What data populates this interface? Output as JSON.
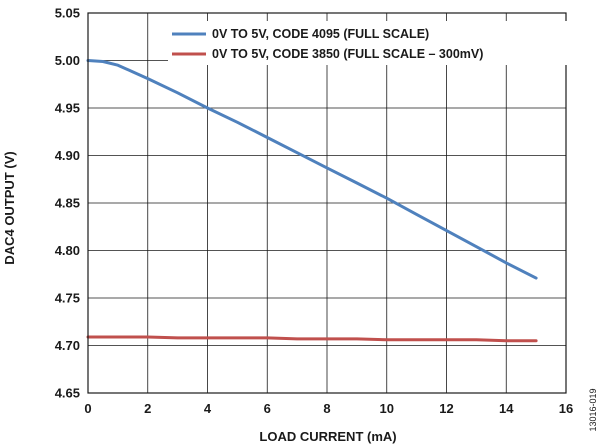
{
  "chart_data": {
    "type": "line",
    "title": "",
    "xlabel": "LOAD CURRENT (mA)",
    "ylabel": "DAC4 OUTPUT (V)",
    "xlim": [
      0,
      16
    ],
    "ylim": [
      4.65,
      5.05
    ],
    "x_ticks": [
      0,
      2,
      4,
      6,
      8,
      10,
      12,
      14,
      16
    ],
    "y_ticks": [
      4.65,
      4.7,
      4.75,
      4.8,
      4.85,
      4.9,
      4.95,
      5.0,
      5.05
    ],
    "x_tick_labels": [
      "0",
      "2",
      "4",
      "6",
      "8",
      "10",
      "12",
      "14",
      "16"
    ],
    "y_tick_labels": [
      "4.65",
      "4.70",
      "4.75",
      "4.80",
      "4.85",
      "4.90",
      "4.95",
      "5.00",
      "5.05"
    ],
    "grid": true,
    "legend_position": "top",
    "series": [
      {
        "name": "0V TO 5V, CODE 4095 (FULL SCALE)",
        "color": "#4f81bd",
        "x": [
          0,
          0.5,
          1,
          1.5,
          2,
          3,
          4,
          5,
          6,
          7,
          8,
          9,
          10,
          11,
          12,
          13,
          14,
          15
        ],
        "y": [
          5.0,
          4.999,
          4.995,
          4.988,
          4.981,
          4.966,
          4.95,
          4.935,
          4.919,
          4.903,
          4.887,
          4.871,
          4.855,
          4.838,
          4.821,
          4.804,
          4.787,
          4.771
        ]
      },
      {
        "name": "0V TO 5V, CODE 3850 (FULL SCALE – 300mV)",
        "color": "#c0504d",
        "x": [
          0,
          1,
          2,
          3,
          4,
          5,
          6,
          7,
          8,
          9,
          10,
          11,
          12,
          13,
          14,
          15
        ],
        "y": [
          4.709,
          4.709,
          4.709,
          4.708,
          4.708,
          4.708,
          4.708,
          4.707,
          4.707,
          4.707,
          4.706,
          4.706,
          4.706,
          4.706,
          4.705,
          4.705
        ]
      }
    ]
  },
  "figure_id": "13016-019"
}
